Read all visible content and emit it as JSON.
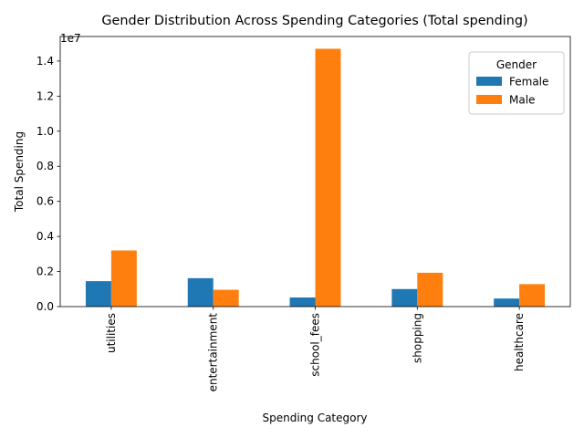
{
  "chart_data": {
    "type": "bar",
    "title": "Gender Distribution Across Spending Categories (Total spending)",
    "xlabel": "Spending Category",
    "ylabel": "Total Spending",
    "y_multiplier": "1e7",
    "categories": [
      "utilities",
      "entertainment",
      "school_fees",
      "shopping",
      "healthcare"
    ],
    "series": [
      {
        "name": "Female",
        "color": "#1f77b4",
        "values": [
          1450000,
          1620000,
          520000,
          1000000,
          460000
        ]
      },
      {
        "name": "Male",
        "color": "#ff7f0e",
        "values": [
          3200000,
          960000,
          14700000,
          1930000,
          1280000
        ]
      }
    ],
    "yticks": [
      0.0,
      0.2,
      0.4,
      0.6,
      0.8,
      1.0,
      1.2,
      1.4
    ],
    "ylim": [
      0,
      15400000
    ],
    "legend": {
      "title": "Gender",
      "placement": "top-right"
    },
    "grid": false
  }
}
